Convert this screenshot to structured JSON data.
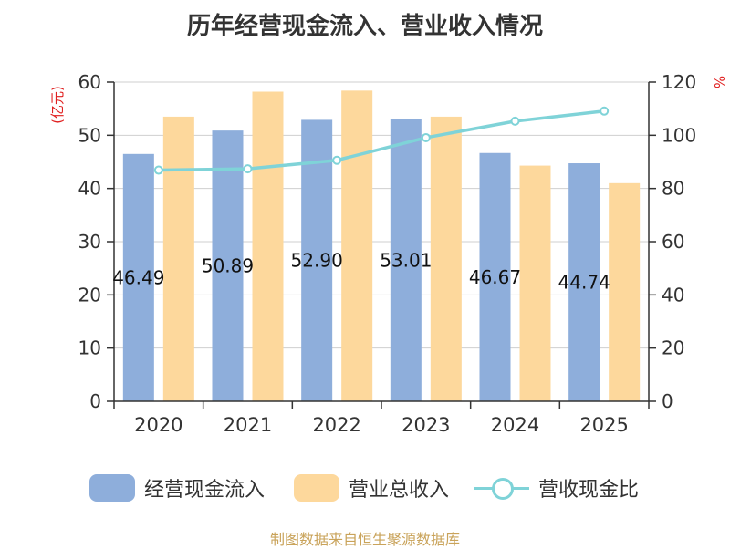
{
  "chart_data": {
    "type": "bar",
    "title": "历年经营现金流入、营业收入情况",
    "categories": [
      "2020",
      "2021",
      "2022",
      "2023",
      "2024",
      "2025"
    ],
    "series": [
      {
        "name": "经营现金流入",
        "axis": "left",
        "kind": "bar",
        "color": "#8eaedb",
        "values": [
          46.49,
          50.89,
          52.9,
          53.01,
          46.67,
          44.74
        ],
        "labels": [
          "46.49",
          "50.89",
          "52.90",
          "53.01",
          "46.67",
          "44.74"
        ]
      },
      {
        "name": "营业总收入",
        "axis": "left",
        "kind": "bar",
        "color": "#fdd89c",
        "values": [
          53.5,
          58.2,
          58.4,
          53.5,
          44.3,
          41.0
        ]
      },
      {
        "name": "营收现金比",
        "axis": "right",
        "kind": "line",
        "color": "#7fd3d8",
        "values": [
          86.9,
          87.4,
          90.6,
          99.1,
          105.3,
          109.1
        ]
      }
    ],
    "yleft": {
      "label": "(亿元)",
      "ylim": [
        0,
        60
      ],
      "ticks": [
        0,
        10,
        20,
        30,
        40,
        50,
        60
      ]
    },
    "yright": {
      "label": "%",
      "ylim": [
        0,
        120
      ],
      "ticks": [
        0,
        20,
        40,
        60,
        80,
        100,
        120
      ]
    },
    "grid": true,
    "legend_position": "bottom",
    "axis_unit_color": "#e02020",
    "source": "制图数据来自恒生聚源数据库"
  }
}
